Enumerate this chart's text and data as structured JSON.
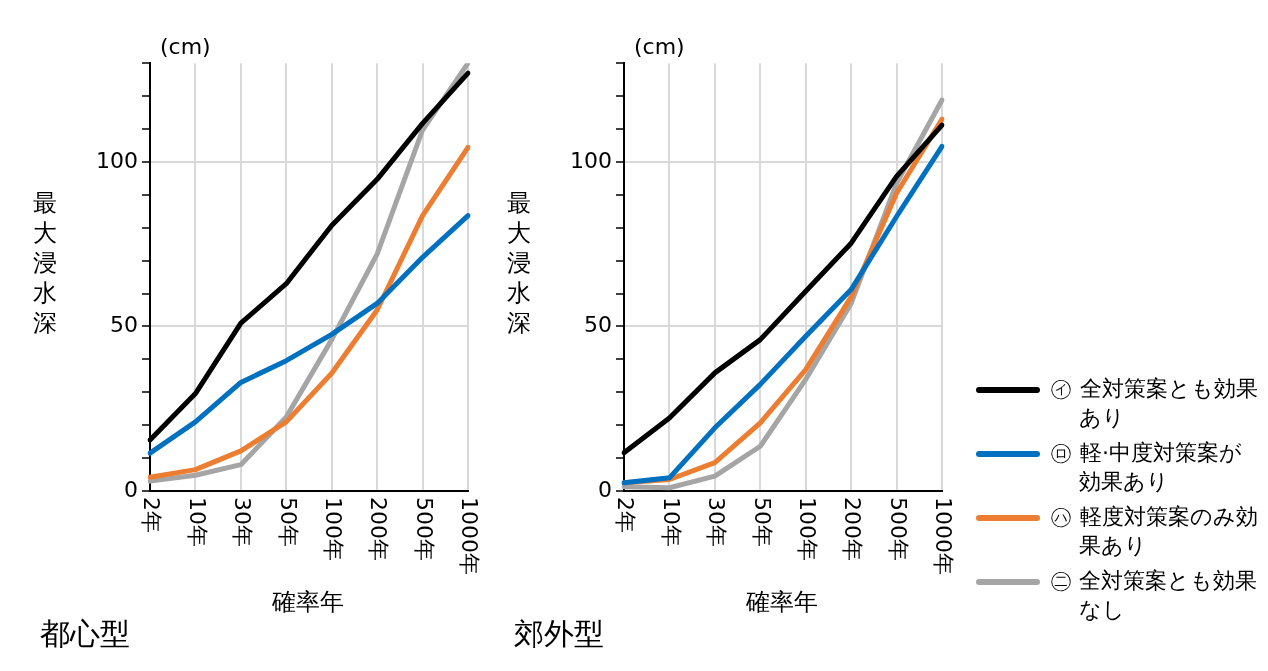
{
  "chart_data": [
    {
      "type": "line",
      "title": "都心型",
      "xlabel": "確率年",
      "ylabel": "最大浸水深",
      "annotations": [
        "(cm)"
      ],
      "categories": [
        "2年",
        "10年",
        "30年",
        "50年",
        "100年",
        "200年",
        "500年",
        "1000年"
      ],
      "ylim": [
        0,
        130
      ],
      "yticks": [
        0,
        {
          "value": 10,
          "label": null
        },
        {
          "value": 20,
          "label": null
        },
        {
          "value": 30,
          "label": null
        },
        {
          "value": 40,
          "label": null
        },
        50,
        {
          "value": 60,
          "label": null
        },
        {
          "value": 70,
          "label": null
        },
        {
          "value": 80,
          "label": null
        },
        {
          "value": 90,
          "label": null
        },
        100,
        {
          "value": 110,
          "label": null
        },
        {
          "value": 120,
          "label": null
        },
        {
          "value": 130,
          "label": null
        }
      ],
      "grid": true,
      "line_style": "solid",
      "legend": "right",
      "series": [
        {
          "name": "㋑ 全対策案とも効果あり",
          "color": "#000000",
          "values": [
            15.5,
            29.6,
            51,
            63,
            80.7,
            94.7,
            111.7,
            127
          ]
        },
        {
          "name": "㋺ 軽·中度対策案が効果あり",
          "color": "#0070c0",
          "values": [
            11.5,
            21,
            33,
            39.6,
            47.6,
            57,
            71,
            83.7
          ]
        },
        {
          "name": "㋩ 軽度対策案のみ効果あり",
          "color": "#ed7d31",
          "values": [
            4.2,
            6.5,
            12.2,
            21,
            35.8,
            55,
            83.7,
            104.4
          ]
        },
        {
          "name": "㊁ 全対策案とも効果なし",
          "color": "#a5a5a5",
          "values": [
            3,
            4.8,
            8,
            22.5,
            46,
            72,
            109.7,
            130
          ]
        }
      ]
    },
    {
      "type": "line",
      "title": "郊外型",
      "xlabel": "確率年",
      "ylabel": "最大浸水深",
      "annotations": [
        "(cm)"
      ],
      "categories": [
        "2年",
        "10年",
        "30年",
        "50年",
        "100年",
        "200年",
        "500年",
        "1000年"
      ],
      "ylim": [
        0,
        130
      ],
      "yticks": [
        0,
        {
          "value": 10,
          "label": null
        },
        {
          "value": 20,
          "label": null
        },
        {
          "value": 30,
          "label": null
        },
        {
          "value": 40,
          "label": null
        },
        50,
        {
          "value": 60,
          "label": null
        },
        {
          "value": 70,
          "label": null
        },
        {
          "value": 80,
          "label": null
        },
        {
          "value": 90,
          "label": null
        },
        100,
        {
          "value": 110,
          "label": null
        },
        {
          "value": 120,
          "label": null
        },
        {
          "value": 130,
          "label": null
        }
      ],
      "grid": true,
      "line_style": "solid",
      "series": [
        {
          "color": "#000000",
          "values": [
            11.6,
            22.2,
            35.9,
            46,
            60.7,
            75.3,
            95.6,
            111.2
          ]
        },
        {
          "color": "#0070c0",
          "values": [
            2.5,
            4,
            19.2,
            32.4,
            47,
            61.2,
            83.4,
            104.7
          ]
        },
        {
          "color": "#ed7d31",
          "values": [
            2.5,
            3.5,
            8.6,
            20.7,
            36.9,
            59,
            90.5,
            113
          ]
        },
        {
          "color": "#a5a5a5",
          "values": [
            1.3,
            1,
            4.5,
            13.6,
            33.9,
            57,
            93.5,
            118.8
          ]
        }
      ]
    }
  ]
}
